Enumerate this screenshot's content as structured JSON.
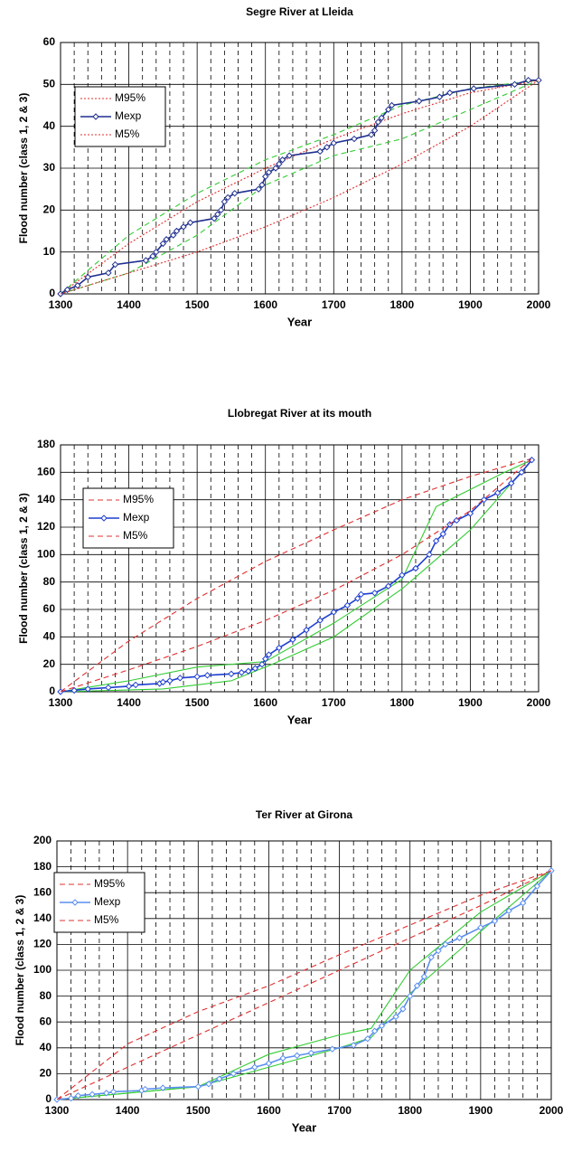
{
  "chart_data": [
    {
      "type": "line",
      "title": "Segre River at Lleida",
      "x_label": "Year",
      "y_label": "Flood number (class 1, 2 & 3)",
      "xlim": [
        1300,
        2000
      ],
      "xticks": [
        1300,
        1400,
        1500,
        1600,
        1700,
        1800,
        1900,
        2000
      ],
      "xminorticks": [
        1320,
        1340,
        1360,
        1380,
        1420,
        1440,
        1460,
        1480,
        1520,
        1540,
        1560,
        1580,
        1620,
        1640,
        1660,
        1680,
        1720,
        1740,
        1760,
        1780,
        1820,
        1840,
        1860,
        1880,
        1920,
        1940,
        1960,
        1980
      ],
      "ylim": [
        0,
        60
      ],
      "yticks": [
        0,
        10,
        20,
        30,
        40,
        50,
        60
      ],
      "grid": true,
      "series": [
        {
          "name": "M95%",
          "color": "#e03030",
          "dash": "dotted",
          "x": [
            1300,
            1400,
            1500,
            1600,
            1700,
            1800,
            1900,
            2000
          ],
          "values": [
            0,
            12,
            22,
            30,
            37,
            43,
            48,
            51
          ]
        },
        {
          "name": "Mexp",
          "color": "#1f2f8f",
          "dash": "solid",
          "marker": "diamond",
          "x": [
            1300,
            1310,
            1325,
            1340,
            1370,
            1380,
            1425,
            1435,
            1440,
            1450,
            1455,
            1465,
            1470,
            1480,
            1490,
            1525,
            1530,
            1535,
            1540,
            1545,
            1555,
            1590,
            1595,
            1600,
            1605,
            1615,
            1620,
            1625,
            1635,
            1680,
            1690,
            1700,
            1730,
            1755,
            1760,
            1765,
            1770,
            1780,
            1785,
            1825,
            1855,
            1870,
            1905,
            1965,
            1985,
            2000
          ],
          "values": [
            0,
            1,
            2,
            4,
            5,
            7,
            8,
            9,
            10,
            12,
            13,
            14,
            15,
            16,
            17,
            18,
            19,
            20,
            22,
            23,
            24,
            25,
            26,
            28,
            29,
            30,
            31,
            32,
            33,
            34,
            35,
            36,
            37,
            38,
            39,
            41,
            42,
            44,
            45,
            46,
            47,
            48,
            49,
            50,
            51,
            51
          ]
        },
        {
          "name": "M5%",
          "color": "#e03030",
          "dash": "dotted",
          "x": [
            1300,
            1400,
            1500,
            1600,
            1700,
            1800,
            1900,
            2000
          ],
          "values": [
            0,
            5,
            10,
            16,
            23,
            31,
            40,
            51
          ]
        },
        {
          "color": "#33cc33",
          "dash": "dashed",
          "x": [
            1300,
            1400,
            1500,
            1600,
            1700,
            1800,
            1900,
            2000
          ],
          "values": [
            0,
            14,
            24,
            32,
            38,
            45,
            49,
            51
          ]
        },
        {
          "color": "#33cc33",
          "dash": "dashed",
          "x": [
            1300,
            1400,
            1500,
            1600,
            1700,
            1800,
            1900,
            2000
          ],
          "values": [
            0,
            5,
            14,
            26,
            33,
            37,
            44,
            51
          ]
        }
      ]
    },
    {
      "type": "line",
      "title": "Llobregat River at its mouth",
      "x_label": "Year",
      "y_label": "Flood number (class 1, 2 & 3)",
      "xlim": [
        1300,
        2000
      ],
      "xticks": [
        1300,
        1400,
        1500,
        1600,
        1700,
        1800,
        1900,
        2000
      ],
      "xminorticks": [
        1320,
        1340,
        1360,
        1380,
        1420,
        1440,
        1460,
        1480,
        1520,
        1540,
        1560,
        1580,
        1620,
        1640,
        1660,
        1680,
        1720,
        1740,
        1760,
        1780,
        1820,
        1840,
        1860,
        1880,
        1920,
        1940,
        1960,
        1980
      ],
      "ylim": [
        0,
        180
      ],
      "yticks": [
        0,
        20,
        40,
        60,
        80,
        100,
        120,
        140,
        160,
        180
      ],
      "grid": true,
      "series": [
        {
          "name": "M95%",
          "color": "#e03030",
          "dash": "dashed",
          "x": [
            1300,
            1400,
            1500,
            1600,
            1700,
            1800,
            1900,
            1990
          ],
          "values": [
            0,
            37,
            68,
            95,
            118,
            140,
            157,
            170
          ]
        },
        {
          "name": "Mexp",
          "color": "#1f3fd0",
          "dash": "solid",
          "marker": "diamond",
          "x": [
            1300,
            1320,
            1340,
            1370,
            1400,
            1410,
            1445,
            1450,
            1460,
            1475,
            1500,
            1515,
            1550,
            1565,
            1575,
            1585,
            1595,
            1600,
            1605,
            1620,
            1640,
            1660,
            1680,
            1700,
            1720,
            1735,
            1740,
            1760,
            1780,
            1800,
            1820,
            1840,
            1850,
            1860,
            1870,
            1880,
            1900,
            1920,
            1940,
            1960,
            1975,
            1990
          ],
          "values": [
            0,
            1,
            2,
            3,
            4,
            5,
            6,
            7,
            8,
            10,
            11,
            12,
            13,
            14,
            15,
            17,
            20,
            24,
            27,
            32,
            38,
            45,
            52,
            58,
            63,
            68,
            71,
            72,
            77,
            85,
            90,
            100,
            110,
            115,
            122,
            125,
            130,
            140,
            145,
            152,
            160,
            169
          ]
        },
        {
          "name": "M5%",
          "color": "#e03030",
          "dash": "dashed",
          "x": [
            1300,
            1400,
            1500,
            1600,
            1700,
            1800,
            1900,
            1990
          ],
          "values": [
            0,
            16,
            33,
            52,
            74,
            100,
            132,
            170
          ]
        },
        {
          "color": "#33cc33",
          "dash": "solid",
          "x": [
            1300,
            1400,
            1500,
            1600,
            1700,
            1800,
            1850,
            1950,
            1990
          ],
          "values": [
            0,
            8,
            18,
            22,
            50,
            82,
            135,
            160,
            169
          ]
        },
        {
          "color": "#33cc33",
          "dash": "solid",
          "x": [
            1300,
            1450,
            1550,
            1610,
            1700,
            1800,
            1900,
            1990
          ],
          "values": [
            0,
            2,
            8,
            20,
            40,
            75,
            118,
            169
          ]
        }
      ]
    },
    {
      "type": "line",
      "title": "Ter River at Girona",
      "x_label": "Year",
      "y_label": "Flood number (class 1, 2 & 3)",
      "xlim": [
        1300,
        2000
      ],
      "xticks": [
        1300,
        1400,
        1500,
        1600,
        1700,
        1800,
        1900,
        2000
      ],
      "xminorticks": [
        1320,
        1340,
        1360,
        1380,
        1420,
        1440,
        1460,
        1480,
        1520,
        1540,
        1560,
        1580,
        1620,
        1640,
        1660,
        1680,
        1720,
        1740,
        1760,
        1780,
        1820,
        1840,
        1860,
        1880,
        1920,
        1940,
        1960,
        1980
      ],
      "ylim": [
        0,
        200
      ],
      "yticks": [
        0,
        20,
        40,
        60,
        80,
        100,
        120,
        140,
        160,
        180,
        200
      ],
      "grid": true,
      "series": [
        {
          "name": "M95%",
          "color": "#e03030",
          "dash": "dashed",
          "x": [
            1300,
            1400,
            1500,
            1600,
            1700,
            1800,
            1900,
            2000
          ],
          "values": [
            0,
            43,
            68,
            88,
            112,
            135,
            158,
            177
          ]
        },
        {
          "name": "Mexp",
          "color": "#5b8fef",
          "dash": "solid",
          "marker": "diamond",
          "x": [
            1300,
            1320,
            1330,
            1350,
            1370,
            1380,
            1420,
            1425,
            1450,
            1500,
            1515,
            1530,
            1550,
            1580,
            1600,
            1620,
            1640,
            1660,
            1690,
            1720,
            1740,
            1750,
            1760,
            1780,
            1790,
            1800,
            1810,
            1820,
            1830,
            1840,
            1850,
            1870,
            1900,
            1920,
            1940,
            1960,
            1980,
            2000
          ],
          "values": [
            0,
            1,
            3,
            4,
            5,
            6,
            7,
            8,
            9,
            10,
            12,
            16,
            20,
            25,
            28,
            32,
            34,
            36,
            39,
            42,
            47,
            53,
            57,
            64,
            70,
            80,
            88,
            95,
            110,
            115,
            120,
            125,
            133,
            138,
            146,
            152,
            165,
            177
          ]
        },
        {
          "name": "M5%",
          "color": "#e03030",
          "dash": "dashed",
          "x": [
            1300,
            1400,
            1500,
            1600,
            1700,
            1800,
            1900,
            2000
          ],
          "values": [
            0,
            25,
            50,
            75,
            100,
            125,
            150,
            177
          ]
        },
        {
          "color": "#33cc33",
          "dash": "solid",
          "x": [
            1300,
            1500,
            1600,
            1700,
            1745,
            1800,
            1900,
            2000
          ],
          "values": [
            0,
            10,
            35,
            50,
            55,
            100,
            145,
            177
          ]
        },
        {
          "color": "#33cc33",
          "dash": "solid",
          "x": [
            1300,
            1500,
            1600,
            1700,
            1745,
            1800,
            1900,
            2000
          ],
          "values": [
            0,
            10,
            25,
            40,
            48,
            82,
            130,
            177
          ]
        }
      ]
    }
  ]
}
